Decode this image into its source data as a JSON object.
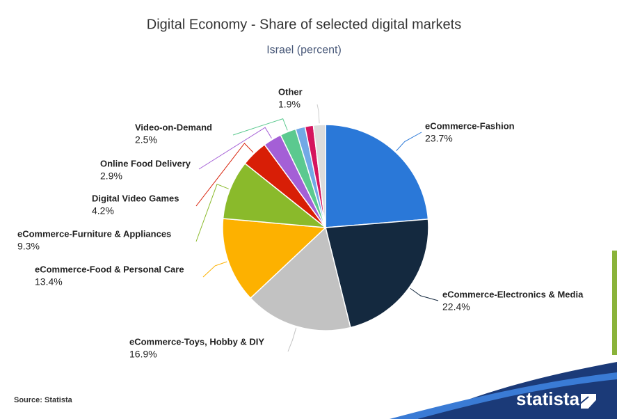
{
  "chart_data": {
    "type": "pie",
    "title": "Digital Economy - Share of selected digital markets",
    "subtitle": "Israel (percent)",
    "categories": [
      "eCommerce-Fashion",
      "eCommerce-Electronics & Media",
      "eCommerce-Toys, Hobby & DIY",
      "eCommerce-Food & Personal Care",
      "eCommerce-Furniture & Appliances",
      "Digital Video Games",
      "Online Food Delivery",
      "Video-on-Demand",
      null,
      null,
      "Other"
    ],
    "values": [
      23.7,
      22.4,
      16.9,
      13.4,
      9.3,
      4.2,
      2.9,
      2.5,
      1.5,
      1.3,
      1.9
    ],
    "value_labels": [
      "23.7%",
      "22.4%",
      "16.9%",
      "13.4%",
      "9.3%",
      "4.2%",
      "2.9%",
      "2.5%",
      null,
      null,
      "1.9%"
    ],
    "colors": [
      "#2a78d8",
      "#14293f",
      "#c2c2c2",
      "#fdb100",
      "#8aba2b",
      "#d81e06",
      "#a45fd6",
      "#5bc98f",
      "#72a9e6",
      "#d5145e",
      "#dcdcdc"
    ],
    "source": "Source: Statista",
    "logo": "statista"
  }
}
